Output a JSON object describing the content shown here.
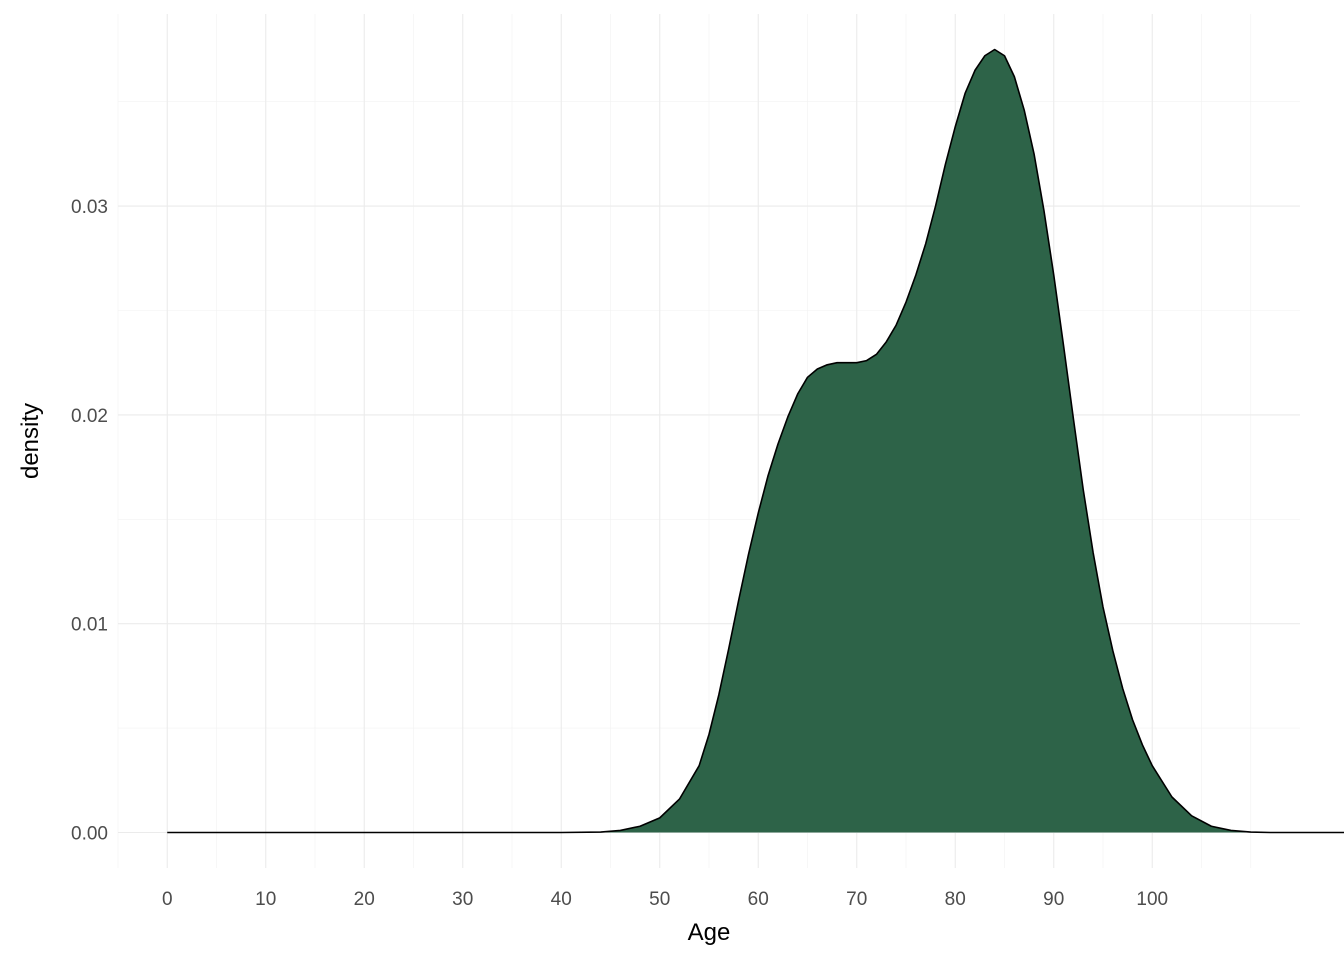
{
  "chart_data": {
    "type": "area",
    "subtype": "density",
    "title": "",
    "xlabel": "Age",
    "ylabel": "density",
    "xlim": [
      -5,
      115
    ],
    "ylim": [
      -0.0017,
      0.0392
    ],
    "x_ticks": [
      0,
      10,
      20,
      30,
      40,
      50,
      60,
      70,
      80,
      90,
      100
    ],
    "x_tick_labels": [
      "0",
      "10",
      "20",
      "30",
      "40",
      "50",
      "60",
      "70",
      "80",
      "90",
      "100"
    ],
    "x_minor_ticks": [
      -5,
      5,
      15,
      25,
      35,
      45,
      55,
      65,
      75,
      85,
      95,
      105,
      110
    ],
    "y_ticks": [
      0,
      0.01,
      0.02,
      0.03
    ],
    "y_tick_labels": [
      "0.00",
      "0.01",
      "0.02",
      "0.03"
    ],
    "y_minor_ticks": [
      0.005,
      0.015,
      0.025,
      0.035
    ],
    "grid": true,
    "legend": "none",
    "fill_color": "#2D6348",
    "line_color": "#000000",
    "series": [
      {
        "x": [
          0,
          10,
          20,
          30,
          40,
          44,
          46,
          48,
          50,
          52,
          54,
          55,
          56,
          57,
          58,
          59,
          60,
          61,
          62,
          63,
          64,
          65,
          66,
          67,
          68,
          69,
          70,
          71,
          72,
          73,
          74,
          75,
          76,
          77,
          78,
          79,
          80,
          81,
          82,
          83,
          84,
          85,
          86,
          87,
          88,
          89,
          90,
          91,
          92,
          93,
          94,
          95,
          96,
          97,
          98,
          99,
          100,
          102,
          104,
          106,
          108,
          110,
          112,
          114,
          120
        ],
        "y": [
          0,
          0,
          0,
          0,
          0,
          2e-05,
          0.0001,
          0.0003,
          0.0007,
          0.0016,
          0.0032,
          0.0047,
          0.0066,
          0.0088,
          0.0111,
          0.0133,
          0.0153,
          0.0171,
          0.0186,
          0.0199,
          0.021,
          0.0218,
          0.0222,
          0.0224,
          0.0225,
          0.0225,
          0.0225,
          0.0226,
          0.0229,
          0.0235,
          0.0243,
          0.0254,
          0.0267,
          0.0282,
          0.03,
          0.032,
          0.0338,
          0.0354,
          0.0365,
          0.0372,
          0.0375,
          0.0372,
          0.0362,
          0.0346,
          0.0325,
          0.0298,
          0.0267,
          0.0233,
          0.0198,
          0.0164,
          0.0134,
          0.0108,
          0.0087,
          0.0069,
          0.0054,
          0.0042,
          0.0032,
          0.0017,
          0.0008,
          0.0003,
          0.0001,
          2e-05,
          0,
          0,
          0
        ]
      }
    ]
  }
}
